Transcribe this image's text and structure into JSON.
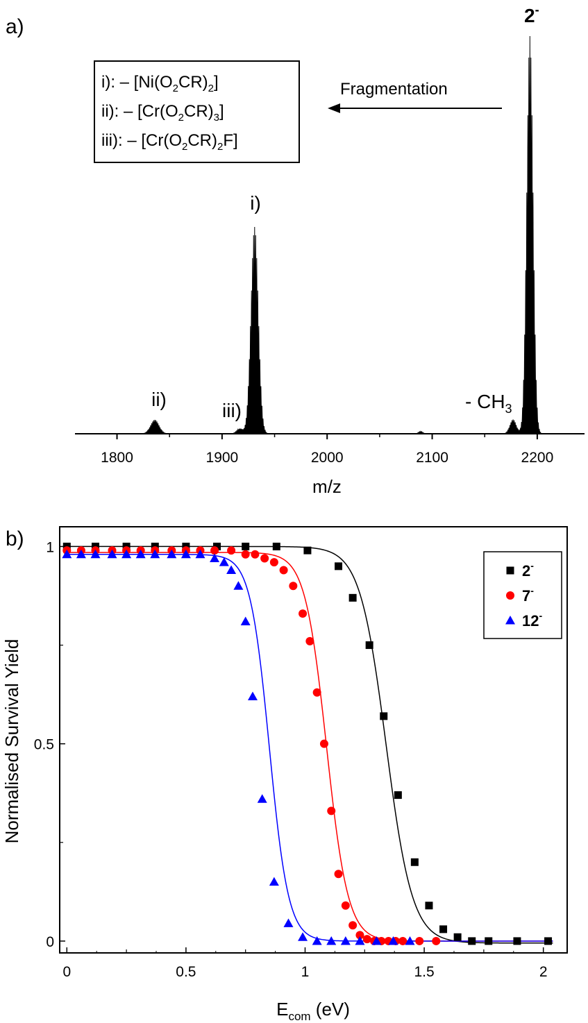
{
  "figure": {
    "panel_a_label": "a)",
    "panel_b_label": "b)"
  },
  "chart_data": [
    {
      "type": "line",
      "panel": "a)",
      "title": "",
      "xlabel": "m/z",
      "ylabel": "",
      "xlim": [
        1760,
        2245
      ],
      "ylim": [
        0,
        1
      ],
      "xticks": [
        1800,
        1900,
        2000,
        2100,
        2200
      ],
      "grid": false,
      "peaks": [
        {
          "mz": 1836,
          "intensity": 0.035,
          "width": 4,
          "label": "ii)"
        },
        {
          "mz": 1917,
          "intensity": 0.013,
          "width": 3,
          "label": "iii)"
        },
        {
          "mz": 1931,
          "intensity": 0.52,
          "width": 3.5,
          "label": "i)"
        },
        {
          "mz": 2089,
          "intensity": 0.006,
          "width": 2,
          "label": ""
        },
        {
          "mz": 2177,
          "intensity": 0.036,
          "width": 3,
          "label": "- CH3"
        },
        {
          "mz": 2193,
          "intensity": 1.0,
          "width": 3,
          "label": "2-"
        }
      ],
      "annotations": {
        "box_lines": [
          {
            "prefix": "i): – [Ni(O",
            "s1": "2",
            "mid": "CR)",
            "s2": "2",
            "suffix": "]"
          },
          {
            "prefix": "ii): – [Cr(O",
            "s1": "2",
            "mid": "CR)",
            "s2": "3",
            "suffix": "]"
          },
          {
            "prefix": "iii): – [Cr(O",
            "s1": "2",
            "mid": "CR)",
            "s2": "2",
            "suffix": "F]"
          }
        ],
        "arrow_label": "Fragmentation",
        "peak_i": "i)",
        "peak_ii": "ii)",
        "peak_iii": "iii)",
        "ch3_base": "- CH",
        "ch3_sub": "3",
        "parent_base": "2",
        "parent_sup": "-"
      }
    },
    {
      "type": "scatter",
      "panel": "b)",
      "title": "",
      "xlabel_base": "E",
      "xlabel_sub": "com",
      "xlabel_suffix": " (eV)",
      "ylabel": "Normalised Survival Yield",
      "xlim": [
        -0.03,
        2.1
      ],
      "ylim": [
        -0.03,
        1.05
      ],
      "xticks": [
        "0",
        "0.5",
        "1",
        "1.5",
        "2"
      ],
      "yticks": [
        "0",
        "0.5",
        "1"
      ],
      "grid": false,
      "legend_position": "top-right",
      "series": [
        {
          "name": "2",
          "sup": "-",
          "color": "#000000",
          "marker": "square",
          "fit": {
            "top": 1.0,
            "bottom": -0.005,
            "x0": 1.34,
            "dx": 0.055
          },
          "x": [
            0,
            0.12,
            0.25,
            0.37,
            0.5,
            0.63,
            0.75,
            0.88,
            1.01,
            1.14,
            1.2,
            1.27,
            1.33,
            1.39,
            1.46,
            1.52,
            1.58,
            1.64,
            1.7,
            1.77,
            1.89,
            2.02
          ],
          "y": [
            1.0,
            1.0,
            1.0,
            1.0,
            1.0,
            1.0,
            1.0,
            1.0,
            0.99,
            0.95,
            0.87,
            0.75,
            0.57,
            0.37,
            0.2,
            0.09,
            0.03,
            0.01,
            0.0,
            0.0,
            0.0,
            0.0
          ]
        },
        {
          "name": "7",
          "sup": "-",
          "color": "#ff0000",
          "marker": "circle",
          "fit": {
            "top": 0.985,
            "bottom": 0.0,
            "x0": 1.09,
            "dx": 0.045
          },
          "x": [
            0,
            0.06,
            0.12,
            0.19,
            0.25,
            0.31,
            0.37,
            0.44,
            0.5,
            0.56,
            0.62,
            0.69,
            0.75,
            0.79,
            0.83,
            0.87,
            0.91,
            0.95,
            0.99,
            1.02,
            1.05,
            1.08,
            1.11,
            1.14,
            1.17,
            1.2,
            1.23,
            1.26,
            1.29,
            1.32,
            1.35,
            1.38,
            1.41,
            1.48,
            1.55
          ],
          "y": [
            0.99,
            0.99,
            0.99,
            0.99,
            0.99,
            0.99,
            0.99,
            0.99,
            0.99,
            0.99,
            0.99,
            0.99,
            0.98,
            0.98,
            0.97,
            0.96,
            0.94,
            0.9,
            0.83,
            0.76,
            0.63,
            0.5,
            0.33,
            0.17,
            0.09,
            0.04,
            0.015,
            0.005,
            0.0,
            0.0,
            0.0,
            0.0,
            0.0,
            0.0,
            0.0
          ]
        },
        {
          "name": "12",
          "sup": "-",
          "color": "#0000ff",
          "marker": "triangle",
          "fit": {
            "top": 0.98,
            "bottom": 0.0,
            "x0": 0.85,
            "dx": 0.04
          },
          "x": [
            0,
            0.06,
            0.12,
            0.19,
            0.25,
            0.31,
            0.37,
            0.44,
            0.5,
            0.56,
            0.62,
            0.66,
            0.69,
            0.72,
            0.75,
            0.78,
            0.82,
            0.87,
            0.93,
            0.99,
            1.05,
            1.11,
            1.17,
            1.23,
            1.3,
            1.37,
            1.44
          ],
          "y": [
            0.98,
            0.98,
            0.98,
            0.98,
            0.98,
            0.98,
            0.98,
            0.98,
            0.98,
            0.98,
            0.97,
            0.96,
            0.94,
            0.9,
            0.81,
            0.62,
            0.36,
            0.15,
            0.045,
            0.01,
            0.0,
            0.0,
            0.0,
            0.0,
            0.0,
            0.0,
            0.0
          ]
        }
      ]
    }
  ]
}
